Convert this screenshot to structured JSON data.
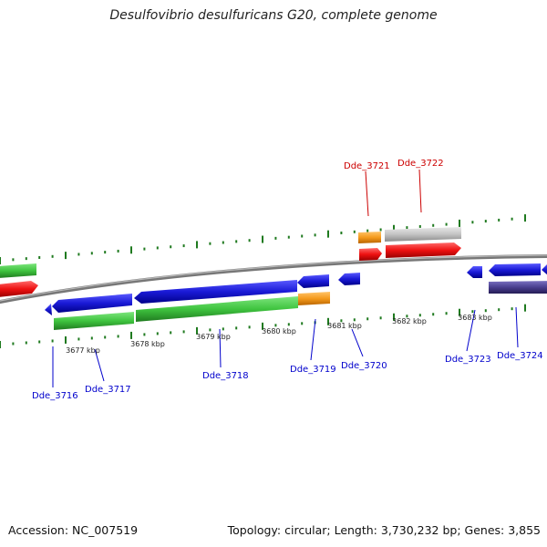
{
  "title": "Desulfovibrio desulfuricans G20, complete genome",
  "footer": {
    "accession": "Accession: NC_007519",
    "topology": "Topology: circular; Length: 3,730,232 bp; Genes: 3,855"
  },
  "colors": {
    "backbone": "#888888",
    "tick": "#1f7a1f",
    "forward_label": "#cc0000",
    "reverse_label": "#0000cc",
    "blue_gene": "#1a1ad6",
    "green_gene": "#3fc43f",
    "red_gene": "#ee1111",
    "orange_gene": "#f59a1c",
    "gray_gene": "#c4c4c4",
    "purple_gene": "#4a3f8f"
  },
  "kbp_labels": [
    "3677 kbp",
    "3678 kbp",
    "3679 kbp",
    "3680 kbp",
    "3681 kbp",
    "3682 kbp",
    "3683 kbp"
  ],
  "gene_labels": {
    "forward": [
      "Dde_3721",
      "Dde_3722"
    ],
    "reverse": [
      "Dde_3716",
      "Dde_3717",
      "Dde_3718",
      "Dde_3719",
      "Dde_3720",
      "Dde_3723",
      "Dde_3724"
    ]
  }
}
